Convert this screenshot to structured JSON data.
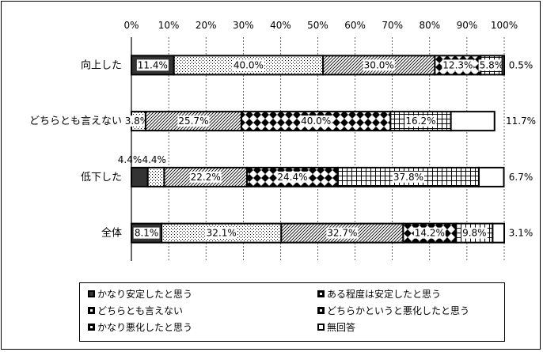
{
  "chart_data": {
    "type": "bar",
    "stacked": true,
    "orientation": "horizontal",
    "x_ticks": [
      "0%",
      "10%",
      "20%",
      "30%",
      "40%",
      "50%",
      "60%",
      "70%",
      "80%",
      "90%",
      "100%"
    ],
    "xlim": [
      0,
      100
    ],
    "categories": [
      "向上した",
      "どちらとも言えない",
      "低下した",
      "全体"
    ],
    "series": [
      {
        "name": "かなり安定したと思う",
        "values": [
          11.4,
          0.0,
          4.4,
          8.1
        ],
        "labels": [
          "11.4%",
          "",
          "4.4%",
          "8.1%"
        ],
        "pattern": "solid-dark"
      },
      {
        "name": "ある程度は安定したと思う",
        "values": [
          40.0,
          3.8,
          4.4,
          32.1
        ],
        "labels": [
          "40.0%",
          "3.8%",
          "4.4%",
          "32.1%"
        ],
        "pattern": "dots"
      },
      {
        "name": "どちらとも言えない",
        "values": [
          30.0,
          25.7,
          22.2,
          32.7
        ],
        "labels": [
          "30.0%",
          "25.7%",
          "22.2%",
          "32.7%"
        ],
        "pattern": "diagonal"
      },
      {
        "name": "どちらかというと悪化したと思う",
        "values": [
          12.3,
          40.0,
          24.4,
          14.2
        ],
        "labels": [
          "12.3%",
          "40.0%",
          "24.4%",
          "14.2%"
        ],
        "pattern": "diamonds"
      },
      {
        "name": "かなり悪化したと思う",
        "values": [
          5.8,
          16.2,
          37.8,
          9.8
        ],
        "labels": [
          "5.8%",
          "16.2%",
          "37.8%",
          "9.8%"
        ],
        "pattern": "grid"
      },
      {
        "name": "無回答",
        "values": [
          0.5,
          11.7,
          6.7,
          3.1
        ],
        "labels": [
          "0.5%",
          "11.7%",
          "6.7%",
          "3.1%"
        ],
        "pattern": "blank"
      }
    ],
    "legend_position": "bottom",
    "grid": true
  }
}
